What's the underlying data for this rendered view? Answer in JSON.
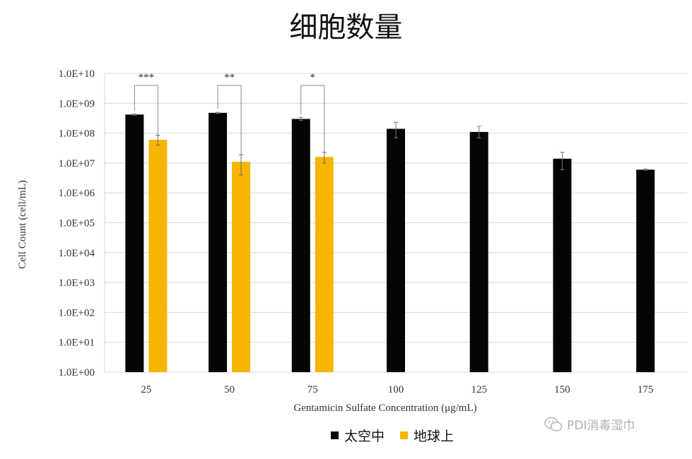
{
  "title": "细胞数量",
  "watermark": "PDI消毒湿巾",
  "colors": {
    "space": "#050505",
    "earth": "#f6b500"
  },
  "chart_data": {
    "type": "bar",
    "categories": [
      "25",
      "50",
      "75",
      "100",
      "125",
      "150",
      "175"
    ],
    "xlabel": "Gentamicin Sulfate Concentration (μg/mL)",
    "ylabel": "Cell Count (cell/mL)",
    "yscale": "log",
    "ylim": [
      1,
      10000000000
    ],
    "yticks": [
      "1.0E+00",
      "1.0E+01",
      "1.0E+02",
      "1.0E+03",
      "1.0E+04",
      "1.0E+05",
      "1.0E+06",
      "1.0E+07",
      "1.0E+08",
      "1.0E+09",
      "1.0E+10"
    ],
    "grid": true,
    "legend_position": "bottom",
    "series": [
      {
        "name": "太空中",
        "color": "#050505",
        "values": [
          420000000,
          480000000,
          300000000,
          140000000,
          110000000,
          14000000,
          6000000
        ],
        "err_low": [
          400000000,
          460000000,
          270000000,
          70000000,
          70000000,
          6000000,
          5800000
        ],
        "err_high": [
          440000000,
          500000000,
          340000000,
          230000000,
          170000000,
          23000000,
          6300000
        ]
      },
      {
        "name": "地球上",
        "color": "#f6b500",
        "values": [
          60000000,
          11000000,
          16000000,
          null,
          null,
          null,
          null
        ],
        "err_low": [
          40000000,
          4000000,
          10000000,
          null,
          null,
          null,
          null
        ],
        "err_high": [
          85000000,
          19000000,
          23000000,
          null,
          null,
          null,
          null
        ]
      }
    ],
    "annotations": [
      {
        "category": "25",
        "text": "***"
      },
      {
        "category": "50",
        "text": "**"
      },
      {
        "category": "75",
        "text": "*"
      }
    ]
  }
}
